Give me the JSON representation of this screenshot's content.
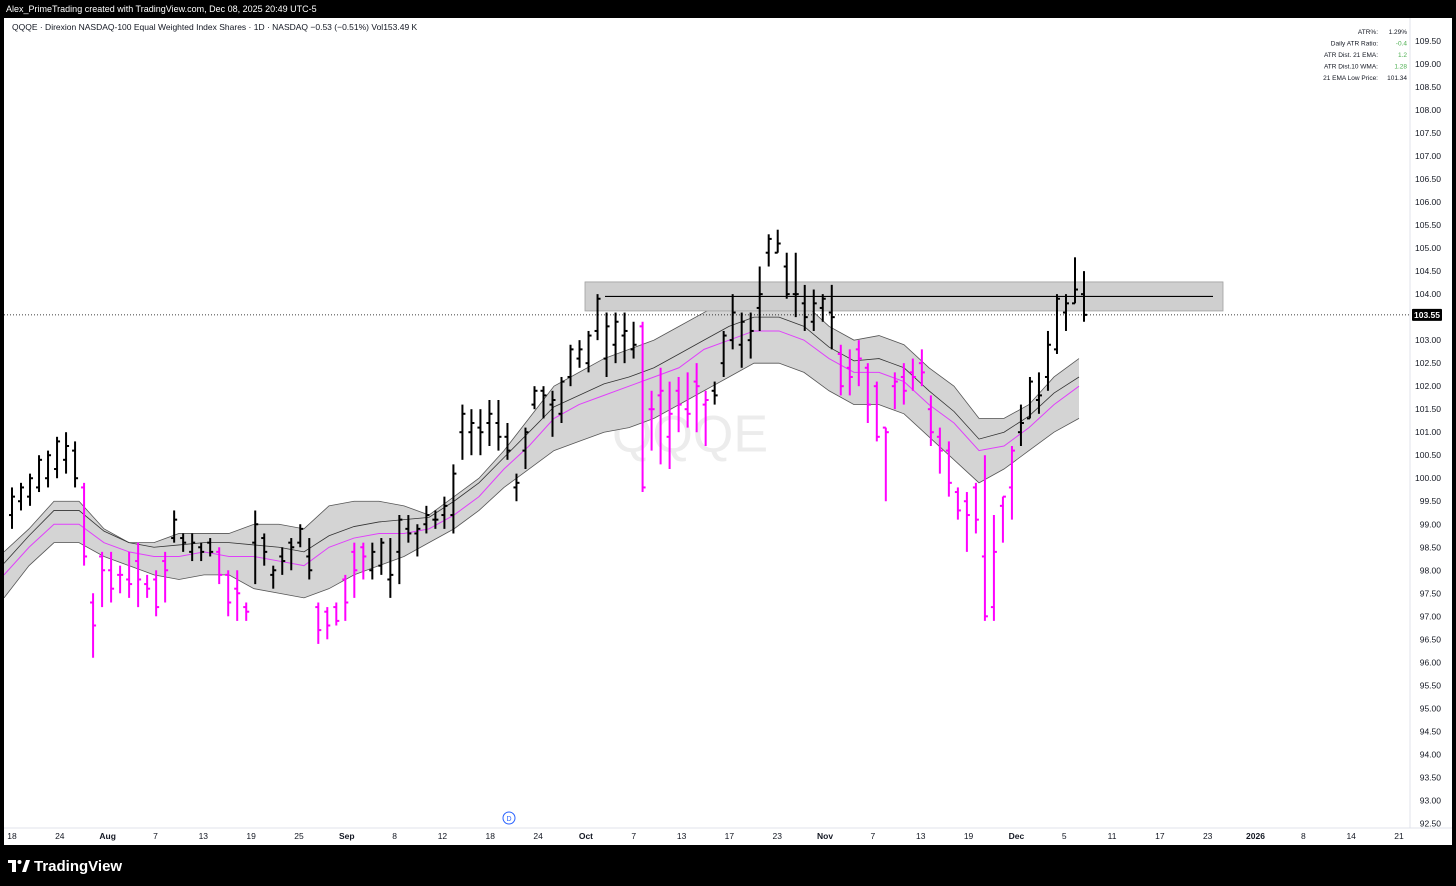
{
  "header": {
    "title": "Alex_PrimeTrading created with TradingView.com, Dec 08, 2025 20:49 UTC-5"
  },
  "legend": {
    "symbol_line": "QQQE · Direxion NASDAQ-100 Equal Weighted Index Shares · 1D · NASDAQ",
    "change": "−0.53 (−0.51%)",
    "volume": "Vol153.49 K"
  },
  "stats": [
    {
      "label": "ATR%:",
      "value": "1.29%",
      "color": "#131722"
    },
    {
      "label": "Daily ATR Ratio:",
      "value": "-0.4",
      "color": "#4caf50"
    },
    {
      "label": "ATR Dist. 21 EMA:",
      "value": "1.2",
      "color": "#4caf50"
    },
    {
      "label": "ATR Dist.10 WMA:",
      "value": "1.28",
      "color": "#4caf50"
    },
    {
      "label": "21 EMA Low Price:",
      "value": "101.34",
      "color": "#131722"
    }
  ],
  "watermark": "QQQE",
  "footer": {
    "brand": "TradingView"
  },
  "colors": {
    "up_bar": "#000000",
    "down_bar": "#ff00ff",
    "band_fill": "#d4d4d4",
    "ema_line": "#e040fb",
    "price_label_bg": "#000000"
  },
  "chart_data": {
    "type": "ohlc",
    "ylim": [
      92.4,
      110.0
    ],
    "y_ticks": [
      109.5,
      109.0,
      108.5,
      108.0,
      107.5,
      107.0,
      106.5,
      106.0,
      105.5,
      105.0,
      104.5,
      104.0,
      103.0,
      102.5,
      102.0,
      101.5,
      101.0,
      100.5,
      100.0,
      99.5,
      99.0,
      98.5,
      98.0,
      97.5,
      97.0,
      96.5,
      96.0,
      95.5,
      95.0,
      94.5,
      94.0,
      93.5,
      93.0,
      92.5
    ],
    "y_tick_labels": [
      "109.50",
      "109.00",
      "108.50",
      "108.00",
      "107.50",
      "107.00",
      "106.50",
      "106.00",
      "105.50",
      "105.00",
      "104.50",
      "104.00",
      "103.00",
      "102.50",
      "102.00",
      "101.50",
      "101.00",
      "100.50",
      "100.00",
      "99.50",
      "99.00",
      "98.50",
      "98.00",
      "97.50",
      "97.00",
      "96.50",
      "96.00",
      "95.50",
      "95.00",
      "94.50",
      "94.00",
      "93.50",
      "93.00",
      "92.50"
    ],
    "last_price": 103.55,
    "last_price_label": "103.55",
    "x_labels": [
      "18",
      "24",
      "Aug",
      "7",
      "13",
      "19",
      "25",
      "Sep",
      "8",
      "12",
      "18",
      "24",
      "Oct",
      "7",
      "13",
      "17",
      "23",
      "Nov",
      "7",
      "13",
      "19",
      "Dec",
      "5",
      "11",
      "17",
      "23",
      "2026",
      "8",
      "14",
      "21"
    ],
    "x_labels_bold": [
      "Aug",
      "Sep",
      "Oct",
      "Nov",
      "Dec",
      "2026"
    ],
    "bars": [
      {
        "o": 99.2,
        "h": 99.8,
        "l": 98.9,
        "c": 99.6,
        "up": true
      },
      {
        "o": 99.5,
        "h": 99.9,
        "l": 99.3,
        "c": 99.8,
        "up": true
      },
      {
        "o": 99.6,
        "h": 100.1,
        "l": 99.4,
        "c": 100.0,
        "up": true
      },
      {
        "o": 99.8,
        "h": 100.5,
        "l": 99.7,
        "c": 100.4,
        "up": true
      },
      {
        "o": 100.0,
        "h": 100.6,
        "l": 99.8,
        "c": 100.5,
        "up": true
      },
      {
        "o": 100.2,
        "h": 100.9,
        "l": 100.0,
        "c": 100.8,
        "up": true
      },
      {
        "o": 100.4,
        "h": 101.0,
        "l": 100.1,
        "c": 100.7,
        "up": true
      },
      {
        "o": 100.6,
        "h": 100.8,
        "l": 99.8,
        "c": 100.0,
        "up": true
      },
      {
        "o": 99.8,
        "h": 99.9,
        "l": 98.1,
        "c": 98.3,
        "up": false
      },
      {
        "o": 97.3,
        "h": 97.5,
        "l": 96.1,
        "c": 96.8,
        "up": false
      },
      {
        "o": 98.3,
        "h": 98.4,
        "l": 97.2,
        "c": 98.0,
        "up": false
      },
      {
        "o": 98.0,
        "h": 98.4,
        "l": 97.3,
        "c": 97.6,
        "up": false
      },
      {
        "o": 97.9,
        "h": 98.1,
        "l": 97.5,
        "c": 97.9,
        "up": false
      },
      {
        "o": 97.8,
        "h": 98.4,
        "l": 97.4,
        "c": 97.7,
        "up": false
      },
      {
        "o": 98.2,
        "h": 98.6,
        "l": 97.2,
        "c": 97.8,
        "up": false
      },
      {
        "o": 97.7,
        "h": 97.9,
        "l": 97.4,
        "c": 97.6,
        "up": false
      },
      {
        "o": 97.8,
        "h": 98.0,
        "l": 97.0,
        "c": 97.2,
        "up": false
      },
      {
        "o": 98.2,
        "h": 98.4,
        "l": 97.3,
        "c": 98.0,
        "up": false
      },
      {
        "o": 98.7,
        "h": 99.3,
        "l": 98.6,
        "c": 99.1,
        "up": true
      },
      {
        "o": 98.7,
        "h": 98.8,
        "l": 98.4,
        "c": 98.6,
        "up": true
      },
      {
        "o": 98.4,
        "h": 98.8,
        "l": 98.2,
        "c": 98.6,
        "up": true
      },
      {
        "o": 98.5,
        "h": 98.6,
        "l": 98.2,
        "c": 98.4,
        "up": true
      },
      {
        "o": 98.6,
        "h": 98.7,
        "l": 98.3,
        "c": 98.4,
        "up": true
      },
      {
        "o": 98.4,
        "h": 98.5,
        "l": 97.7,
        "c": 97.9,
        "up": false
      },
      {
        "o": 97.9,
        "h": 98.0,
        "l": 97.0,
        "c": 97.3,
        "up": false
      },
      {
        "o": 97.6,
        "h": 98.0,
        "l": 96.9,
        "c": 97.5,
        "up": false
      },
      {
        "o": 97.2,
        "h": 97.3,
        "l": 96.9,
        "c": 97.1,
        "up": false
      },
      {
        "o": 98.6,
        "h": 99.3,
        "l": 97.7,
        "c": 99.0,
        "up": true
      },
      {
        "o": 98.7,
        "h": 98.8,
        "l": 98.1,
        "c": 98.4,
        "up": true
      },
      {
        "o": 97.9,
        "h": 98.1,
        "l": 97.6,
        "c": 98.0,
        "up": true
      },
      {
        "o": 98.3,
        "h": 98.5,
        "l": 97.9,
        "c": 98.2,
        "up": true
      },
      {
        "o": 98.6,
        "h": 98.7,
        "l": 98.0,
        "c": 98.5,
        "up": true
      },
      {
        "o": 98.6,
        "h": 99.0,
        "l": 98.5,
        "c": 98.9,
        "up": true
      },
      {
        "o": 98.3,
        "h": 98.7,
        "l": 97.8,
        "c": 98.0,
        "up": true
      },
      {
        "o": 97.2,
        "h": 97.3,
        "l": 96.4,
        "c": 96.7,
        "up": false
      },
      {
        "o": 97.1,
        "h": 97.2,
        "l": 96.5,
        "c": 96.8,
        "up": false
      },
      {
        "o": 97.2,
        "h": 97.3,
        "l": 96.8,
        "c": 96.9,
        "up": false
      },
      {
        "o": 97.8,
        "h": 97.9,
        "l": 96.9,
        "c": 97.3,
        "up": false
      },
      {
        "o": 98.4,
        "h": 98.6,
        "l": 97.4,
        "c": 98.0,
        "up": false
      },
      {
        "o": 98.5,
        "h": 98.6,
        "l": 97.8,
        "c": 98.3,
        "up": false
      },
      {
        "o": 98.0,
        "h": 98.6,
        "l": 97.8,
        "c": 98.4,
        "up": true
      },
      {
        "o": 98.1,
        "h": 98.7,
        "l": 97.9,
        "c": 98.6,
        "up": true
      },
      {
        "o": 97.8,
        "h": 98.7,
        "l": 97.4,
        "c": 97.9,
        "up": true
      },
      {
        "o": 98.4,
        "h": 99.2,
        "l": 97.7,
        "c": 99.1,
        "up": true
      },
      {
        "o": 98.9,
        "h": 99.2,
        "l": 98.6,
        "c": 98.8,
        "up": true
      },
      {
        "o": 98.8,
        "h": 99.0,
        "l": 98.3,
        "c": 98.9,
        "up": true
      },
      {
        "o": 99.0,
        "h": 99.4,
        "l": 98.8,
        "c": 99.2,
        "up": true
      },
      {
        "o": 99.1,
        "h": 99.3,
        "l": 98.9,
        "c": 99.1,
        "up": true
      },
      {
        "o": 99.2,
        "h": 99.6,
        "l": 98.9,
        "c": 99.4,
        "up": true
      },
      {
        "o": 99.2,
        "h": 100.3,
        "l": 98.8,
        "c": 100.1,
        "up": true
      },
      {
        "o": 101.0,
        "h": 101.6,
        "l": 100.4,
        "c": 101.4,
        "up": true
      },
      {
        "o": 101.0,
        "h": 101.5,
        "l": 100.5,
        "c": 101.2,
        "up": true
      },
      {
        "o": 101.1,
        "h": 101.5,
        "l": 100.5,
        "c": 101.0,
        "up": true
      },
      {
        "o": 101.2,
        "h": 101.7,
        "l": 100.7,
        "c": 101.4,
        "up": true
      },
      {
        "o": 101.2,
        "h": 101.7,
        "l": 100.6,
        "c": 100.9,
        "up": true
      },
      {
        "o": 100.9,
        "h": 101.2,
        "l": 100.4,
        "c": 100.6,
        "up": true
      },
      {
        "o": 99.8,
        "h": 100.1,
        "l": 99.5,
        "c": 99.9,
        "up": true
      },
      {
        "o": 100.6,
        "h": 101.1,
        "l": 100.2,
        "c": 101.0,
        "up": true
      },
      {
        "o": 101.6,
        "h": 102.0,
        "l": 101.5,
        "c": 101.9,
        "up": true
      },
      {
        "o": 101.9,
        "h": 102.0,
        "l": 101.3,
        "c": 101.8,
        "up": true
      },
      {
        "o": 101.6,
        "h": 101.9,
        "l": 100.9,
        "c": 101.7,
        "up": true
      },
      {
        "o": 101.4,
        "h": 102.2,
        "l": 101.2,
        "c": 102.1,
        "up": true
      },
      {
        "o": 102.2,
        "h": 102.9,
        "l": 102.0,
        "c": 102.8,
        "up": true
      },
      {
        "o": 102.6,
        "h": 103.0,
        "l": 102.4,
        "c": 102.8,
        "up": true
      },
      {
        "o": 102.5,
        "h": 103.2,
        "l": 102.3,
        "c": 103.1,
        "up": true
      },
      {
        "o": 103.2,
        "h": 104.0,
        "l": 103.0,
        "c": 103.9,
        "up": true
      },
      {
        "o": 102.6,
        "h": 103.6,
        "l": 102.2,
        "c": 103.3,
        "up": true
      },
      {
        "o": 102.9,
        "h": 103.6,
        "l": 102.5,
        "c": 103.4,
        "up": true
      },
      {
        "o": 103.1,
        "h": 103.6,
        "l": 102.5,
        "c": 103.2,
        "up": true
      },
      {
        "o": 102.8,
        "h": 103.4,
        "l": 102.6,
        "c": 102.9,
        "up": true
      },
      {
        "o": 103.3,
        "h": 103.4,
        "l": 99.7,
        "c": 99.8,
        "up": false
      },
      {
        "o": 101.5,
        "h": 101.9,
        "l": 100.6,
        "c": 101.5,
        "up": false
      },
      {
        "o": 101.8,
        "h": 102.4,
        "l": 100.3,
        "c": 101.9,
        "up": false
      },
      {
        "o": 100.9,
        "h": 102.1,
        "l": 100.2,
        "c": 101.4,
        "up": false
      },
      {
        "o": 101.9,
        "h": 102.2,
        "l": 101.0,
        "c": 101.6,
        "up": false
      },
      {
        "o": 101.5,
        "h": 102.3,
        "l": 101.1,
        "c": 101.4,
        "up": false
      },
      {
        "o": 102.1,
        "h": 102.5,
        "l": 101.0,
        "c": 102.0,
        "up": false
      },
      {
        "o": 101.6,
        "h": 101.9,
        "l": 100.7,
        "c": 101.7,
        "up": false
      },
      {
        "o": 101.9,
        "h": 102.1,
        "l": 101.6,
        "c": 101.8,
        "up": true
      },
      {
        "o": 102.5,
        "h": 103.2,
        "l": 102.2,
        "c": 103.1,
        "up": true
      },
      {
        "o": 103.0,
        "h": 104.0,
        "l": 102.8,
        "c": 103.6,
        "up": true
      },
      {
        "o": 102.9,
        "h": 103.6,
        "l": 102.4,
        "c": 103.4,
        "up": true
      },
      {
        "o": 103.0,
        "h": 103.6,
        "l": 102.6,
        "c": 103.2,
        "up": true
      },
      {
        "o": 103.7,
        "h": 104.6,
        "l": 103.2,
        "c": 104.0,
        "up": true
      },
      {
        "o": 104.9,
        "h": 105.3,
        "l": 104.6,
        "c": 105.2,
        "up": true
      },
      {
        "o": 104.9,
        "h": 105.4,
        "l": 104.9,
        "c": 105.1,
        "up": true
      },
      {
        "o": 104.6,
        "h": 104.9,
        "l": 103.9,
        "c": 104.0,
        "up": true
      },
      {
        "o": 104.0,
        "h": 104.9,
        "l": 103.5,
        "c": 104.0,
        "up": true
      },
      {
        "o": 103.8,
        "h": 104.2,
        "l": 103.2,
        "c": 103.5,
        "up": true
      },
      {
        "o": 103.4,
        "h": 104.1,
        "l": 103.2,
        "c": 103.8,
        "up": true
      },
      {
        "o": 103.7,
        "h": 104.0,
        "l": 103.4,
        "c": 103.9,
        "up": true
      },
      {
        "o": 103.6,
        "h": 104.2,
        "l": 102.8,
        "c": 103.5,
        "up": true
      },
      {
        "o": 102.7,
        "h": 102.9,
        "l": 101.8,
        "c": 102.0,
        "up": false
      },
      {
        "o": 102.4,
        "h": 102.8,
        "l": 101.8,
        "c": 102.2,
        "up": false
      },
      {
        "o": 102.8,
        "h": 103.0,
        "l": 102.0,
        "c": 102.6,
        "up": false
      },
      {
        "o": 102.4,
        "h": 102.5,
        "l": 101.2,
        "c": 101.6,
        "up": false
      },
      {
        "o": 102.0,
        "h": 102.1,
        "l": 100.8,
        "c": 100.9,
        "up": false
      },
      {
        "o": 101.1,
        "h": 101.1,
        "l": 99.5,
        "c": 101.0,
        "up": false
      },
      {
        "o": 102.0,
        "h": 102.3,
        "l": 101.5,
        "c": 102.1,
        "up": false
      },
      {
        "o": 102.2,
        "h": 102.5,
        "l": 101.6,
        "c": 101.9,
        "up": false
      },
      {
        "o": 102.3,
        "h": 102.6,
        "l": 101.9,
        "c": 102.2,
        "up": false
      },
      {
        "o": 102.5,
        "h": 102.8,
        "l": 102.0,
        "c": 102.3,
        "up": false
      },
      {
        "o": 101.5,
        "h": 101.8,
        "l": 100.7,
        "c": 101.0,
        "up": false
      },
      {
        "o": 100.9,
        "h": 101.1,
        "l": 100.1,
        "c": 100.6,
        "up": false
      },
      {
        "o": 100.6,
        "h": 100.8,
        "l": 99.6,
        "c": 99.9,
        "up": false
      },
      {
        "o": 99.7,
        "h": 99.8,
        "l": 99.1,
        "c": 99.3,
        "up": false
      },
      {
        "o": 99.5,
        "h": 99.7,
        "l": 98.4,
        "c": 99.2,
        "up": false
      },
      {
        "o": 99.8,
        "h": 99.9,
        "l": 98.8,
        "c": 99.1,
        "up": false
      },
      {
        "o": 98.3,
        "h": 100.5,
        "l": 96.9,
        "c": 97.0,
        "up": false
      },
      {
        "o": 97.2,
        "h": 99.2,
        "l": 96.9,
        "c": 98.4,
        "up": false
      },
      {
        "o": 99.4,
        "h": 99.6,
        "l": 98.6,
        "c": 99.6,
        "up": false
      },
      {
        "o": 99.8,
        "h": 100.7,
        "l": 99.1,
        "c": 100.6,
        "up": false
      },
      {
        "o": 101.0,
        "h": 101.6,
        "l": 100.7,
        "c": 101.2,
        "up": true
      },
      {
        "o": 101.3,
        "h": 102.2,
        "l": 101.3,
        "c": 102.1,
        "up": true
      },
      {
        "o": 101.7,
        "h": 102.3,
        "l": 101.4,
        "c": 101.8,
        "up": true
      },
      {
        "o": 102.2,
        "h": 103.2,
        "l": 101.9,
        "c": 102.9,
        "up": true
      },
      {
        "o": 102.8,
        "h": 104.0,
        "l": 102.7,
        "c": 103.9,
        "up": true
      },
      {
        "o": 103.6,
        "h": 104.0,
        "l": 103.2,
        "c": 103.8,
        "up": true
      },
      {
        "o": 103.8,
        "h": 104.8,
        "l": 103.8,
        "c": 104.1,
        "up": true
      },
      {
        "o": 104.0,
        "h": 104.5,
        "l": 103.4,
        "c": 103.55,
        "up": true
      }
    ],
    "band_upper": [
      98.4,
      98.9,
      99.5,
      99.5,
      98.9,
      98.6,
      98.6,
      98.8,
      98.8,
      98.8,
      99.0,
      99.0,
      98.9,
      99.4,
      99.5,
      99.5,
      99.4,
      99.2,
      99.6,
      100.0,
      100.6,
      101.3,
      102.0,
      102.3,
      102.6,
      102.8,
      103.0,
      103.3,
      103.6,
      103.9,
      104.0,
      104.0,
      103.8,
      103.3,
      103.0,
      103.1,
      102.9,
      102.4,
      102.0,
      101.3,
      101.3,
      101.6,
      102.2,
      102.6
    ],
    "band_lower": [
      97.4,
      98.1,
      98.6,
      98.6,
      98.3,
      98.1,
      97.9,
      97.8,
      97.9,
      97.9,
      97.6,
      97.5,
      97.4,
      97.6,
      97.9,
      98.1,
      98.3,
      98.6,
      98.9,
      99.3,
      99.8,
      100.2,
      100.6,
      100.8,
      101.0,
      101.1,
      101.3,
      101.6,
      101.9,
      102.2,
      102.5,
      102.5,
      102.3,
      101.9,
      101.6,
      101.6,
      101.4,
      100.9,
      100.4,
      99.9,
      100.2,
      100.6,
      101.0,
      101.3
    ],
    "ema": [
      97.9,
      98.5,
      99.0,
      99.0,
      98.6,
      98.4,
      98.3,
      98.3,
      98.4,
      98.3,
      98.3,
      98.2,
      98.1,
      98.5,
      98.7,
      98.8,
      98.8,
      98.9,
      99.2,
      99.6,
      100.2,
      100.7,
      101.3,
      101.6,
      101.8,
      102.0,
      102.2,
      102.4,
      102.8,
      103.0,
      103.2,
      103.2,
      103.0,
      102.6,
      102.3,
      102.3,
      102.1,
      101.6,
      101.2,
      100.6,
      100.7,
      101.1,
      101.6,
      102.0
    ],
    "zone": {
      "low": 103.7,
      "high": 104.2,
      "line": 103.95
    }
  }
}
